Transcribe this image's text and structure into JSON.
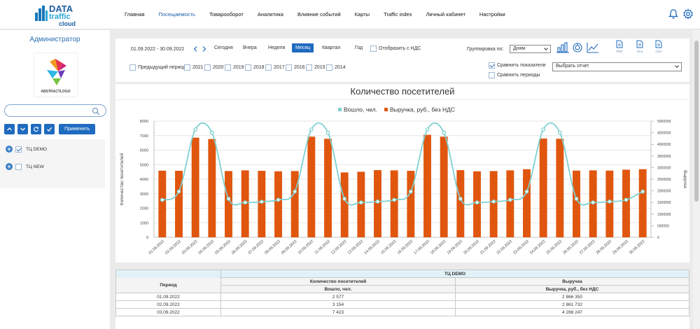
{
  "app": {
    "logo_line1": "DATA",
    "logo_line2": "traffic",
    "logo_line3": "cloud"
  },
  "nav": [
    {
      "label": "Главная",
      "active": false
    },
    {
      "label": "Посещаемость",
      "active": true
    },
    {
      "label": "Товарооборот",
      "active": false
    },
    {
      "label": "Аналитика",
      "active": false
    },
    {
      "label": "Влияние событий",
      "active": false
    },
    {
      "label": "Карты",
      "active": false
    },
    {
      "label": "Traffic index",
      "active": false
    },
    {
      "label": "Личный кабинет",
      "active": false
    },
    {
      "label": "Настройки",
      "active": false
    }
  ],
  "header_icons": [
    "bell-icon",
    "gear-icon"
  ],
  "sidebar": {
    "title": "Администратор",
    "avatar_caption": "ABSTRACTLOGO",
    "search_value": "",
    "apply_label": "Применить",
    "tree": [
      {
        "label": "ТЦ DEMO",
        "checked": true
      },
      {
        "label": "ТЦ NEW",
        "checked": false
      }
    ]
  },
  "filters": {
    "date_range": "01.09.2022 - 30.09.2022",
    "periods": [
      {
        "label": "Сегодня",
        "active": false
      },
      {
        "label": "Вчера",
        "active": false
      },
      {
        "label": "Неделя",
        "active": false
      },
      {
        "label": "Месяц",
        "active": true
      },
      {
        "label": "Квартал",
        "active": false
      },
      {
        "label": "Год",
        "active": false
      }
    ],
    "vat_label": "Отобразить с НДС",
    "grouping_label": "Группировка по:",
    "grouping_value": "Дням",
    "export": [
      "PDF",
      "XLS",
      "CSV"
    ],
    "prev_period_label": "Предыдущий период",
    "years": [
      "2021",
      "2020",
      "2019",
      "2018",
      "2017",
      "2016",
      "2015",
      "2014"
    ],
    "compare_metrics_label": "Сравнить показатели",
    "compare_metrics_checked": true,
    "compare_periods_label": "Сравнить периоды",
    "compare_periods_checked": false,
    "report_select_value": "Выбрать отчет"
  },
  "chart_data": {
    "type": "bar",
    "title": "Количество посетителей",
    "ylabel": "Количество посетителей",
    "y2label": "Выручка",
    "ylim": [
      0,
      8000
    ],
    "y2lim": [
      0,
      5000000
    ],
    "yticks": [
      0,
      1000,
      2000,
      3000,
      4000,
      5000,
      6000,
      7000,
      8000
    ],
    "y2ticks": [
      0,
      500000,
      1000000,
      1500000,
      2000000,
      2500000,
      3000000,
      3500000,
      4000000,
      4500000,
      5000000
    ],
    "grid": true,
    "legend_position": "top-center",
    "categories": [
      "01.09.2022",
      "02.09.2022",
      "03.09.2022",
      "04.09.2022",
      "05.09.2022",
      "06.09.2022",
      "07.09.2022",
      "08.09.2022",
      "09.09.2022",
      "10.09.2022",
      "11.09.2022",
      "12.09.2022",
      "13.09.2022",
      "14.09.2022",
      "15.09.2022",
      "16.09.2022",
      "17.09.2022",
      "18.09.2022",
      "19.09.2022",
      "20.09.2022",
      "21.09.2022",
      "22.09.2022",
      "23.09.2022",
      "24.09.2022",
      "25.09.2022",
      "26.09.2022",
      "27.09.2022",
      "28.09.2022",
      "29.09.2022",
      "30.09.2022"
    ],
    "series": [
      {
        "name": "Вошло, чел.",
        "kind": "line",
        "axis": "left",
        "color": "#7fd0d0",
        "values": [
          2577,
          3154,
          7423,
          7200,
          2650,
          2400,
          2450,
          2580,
          3150,
          7420,
          7200,
          2650,
          2400,
          2460,
          2580,
          3150,
          7420,
          7200,
          2650,
          2400,
          2460,
          2580,
          3150,
          7420,
          7200,
          2650,
          2400,
          2460,
          2580,
          3150
        ]
      },
      {
        "name": "Выручка, руб., без НДС",
        "kind": "bar",
        "axis": "right",
        "color": "#e0560e",
        "values": [
          2866350,
          2861732,
          4288247,
          4230000,
          2850000,
          2880000,
          2860000,
          2840000,
          2850000,
          4330000,
          4240000,
          2790000,
          2820000,
          2890000,
          2880000,
          2860000,
          4410000,
          4330000,
          2890000,
          2840000,
          2850000,
          2880000,
          2930000,
          4250000,
          4240000,
          2870000,
          2880000,
          2870000,
          2910000,
          2930000
        ]
      }
    ]
  },
  "table": {
    "group_header": "ТЦ DEMO",
    "period_header": "Период",
    "visitors_header": "Количество посетителей",
    "visitors_sub": "Вошло, чел.",
    "revenue_header": "Выручка",
    "revenue_sub": "Выручка, руб., без НДС",
    "rows": [
      {
        "period": "01.09.2022",
        "visitors": "2 577",
        "revenue": "2 866 350"
      },
      {
        "period": "02.09.2022",
        "visitors": "3 154",
        "revenue": "2 861 732"
      },
      {
        "period": "03.09.2022",
        "visitors": "7 423",
        "revenue": "4 288 247"
      }
    ]
  }
}
